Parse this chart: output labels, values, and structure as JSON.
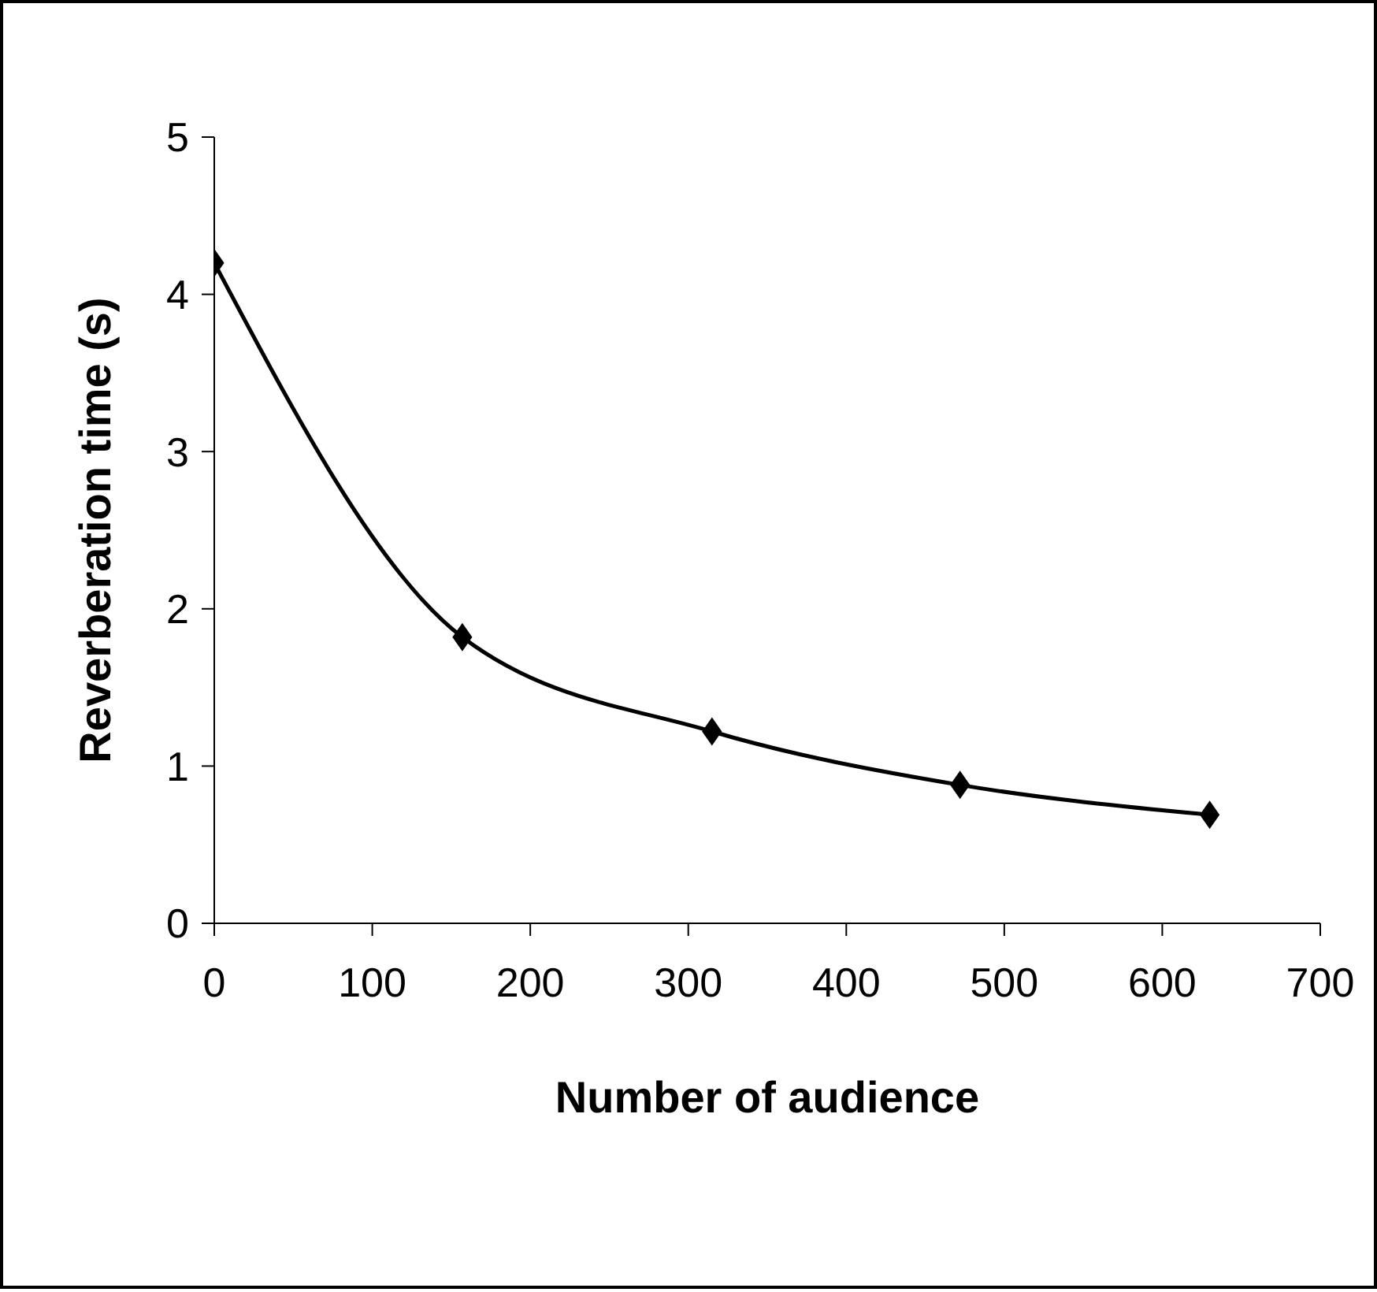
{
  "chart_data": {
    "type": "line",
    "xlabel": "Number of audience",
    "ylabel": "Reverberation time (s)",
    "x": [
      0,
      157,
      315,
      472,
      630
    ],
    "series": [
      {
        "color": "#000000",
        "values": [
          4.2,
          1.82,
          1.22,
          0.88,
          0.69
        ]
      }
    ],
    "xlim": [
      0,
      700
    ],
    "xticks": [
      0,
      100,
      200,
      300,
      400,
      500,
      600,
      700
    ],
    "ylim": [
      0,
      5
    ],
    "yticks": [
      0,
      1,
      2,
      3,
      4,
      5
    ],
    "marker": "diamond",
    "line_style": "solid"
  }
}
